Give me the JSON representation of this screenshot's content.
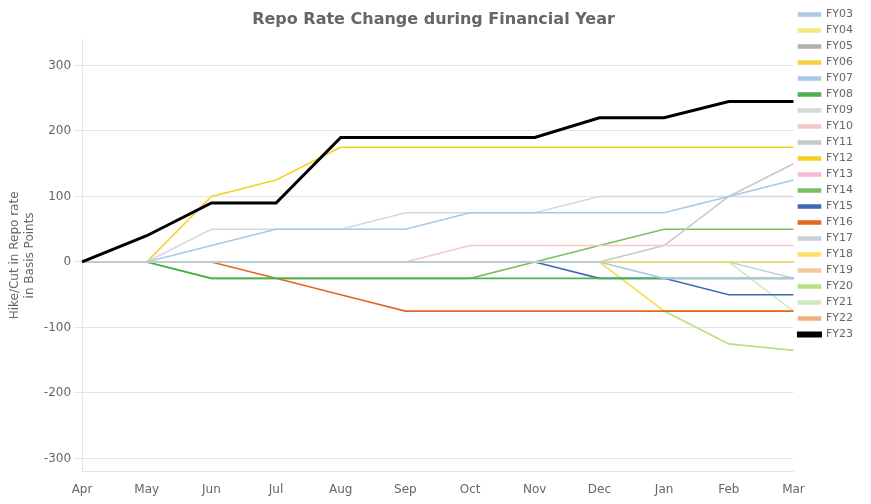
{
  "chart_data": {
    "type": "line",
    "title": "Repo Rate Change during Financial Year",
    "y_label": "Hike/Cut in Repo rate\nin Basis Points",
    "categories": [
      "Apr",
      "May",
      "Jun",
      "Jul",
      "Aug",
      "Sep",
      "Oct",
      "Nov",
      "Dec",
      "Jan",
      "Feb",
      "Mar"
    ],
    "ylim": [
      -320,
      340
    ],
    "yticks": [
      -300,
      -200,
      -100,
      0,
      100,
      200,
      300
    ],
    "grid": true,
    "legend": "right",
    "series": [
      {
        "name": "FY03",
        "color": "#aec6e8",
        "values": [
          0,
          0,
          0,
          0,
          0,
          0,
          0,
          0,
          0,
          -25,
          -25,
          -25
        ]
      },
      {
        "name": "FY04",
        "color": "#f5e97a",
        "values": [
          0,
          0,
          0,
          0,
          0,
          0,
          0,
          0,
          0,
          0,
          0,
          0
        ]
      },
      {
        "name": "FY05",
        "color": "#b0b0b0",
        "values": [
          0,
          0,
          0,
          0,
          0,
          0,
          0,
          0,
          0,
          0,
          0,
          0
        ]
      },
      {
        "name": "FY06",
        "color": "#f5d040",
        "values": [
          0,
          0,
          0,
          0,
          0,
          0,
          0,
          0,
          0,
          0,
          0,
          0
        ]
      },
      {
        "name": "FY07",
        "color": "#a8c8e8",
        "values": [
          0,
          0,
          25,
          50,
          50,
          50,
          75,
          75,
          75,
          75,
          100,
          125
        ]
      },
      {
        "name": "FY08",
        "color": "#4caf50",
        "values": [
          0,
          0,
          -25,
          -25,
          -25,
          -25,
          -25,
          -25,
          -25,
          -25,
          -25,
          -25
        ]
      },
      {
        "name": "FY09",
        "color": "#d8d8d8",
        "values": [
          0,
          0,
          50,
          50,
          50,
          75,
          75,
          75,
          100,
          100,
          100,
          100
        ]
      },
      {
        "name": "FY10",
        "color": "#f5c8c8",
        "values": [
          0,
          0,
          0,
          0,
          0,
          0,
          25,
          25,
          25,
          25,
          25,
          25
        ]
      },
      {
        "name": "FY11",
        "color": "#c8c8c8",
        "values": [
          0,
          0,
          0,
          0,
          0,
          0,
          0,
          0,
          0,
          25,
          100,
          150
        ]
      },
      {
        "name": "FY12",
        "color": "#f5d020",
        "values": [
          0,
          0,
          100,
          125,
          175,
          175,
          175,
          175,
          175,
          175,
          175,
          175
        ]
      },
      {
        "name": "FY13",
        "color": "#f9b8d4",
        "values": [
          0,
          0,
          0,
          0,
          0,
          0,
          0,
          0,
          0,
          0,
          0,
          0
        ]
      },
      {
        "name": "FY14",
        "color": "#7cbf5e",
        "values": [
          0,
          0,
          -25,
          -25,
          -25,
          -25,
          -25,
          0,
          25,
          50,
          50,
          50
        ]
      },
      {
        "name": "FY15",
        "color": "#3b6bb5",
        "values": [
          0,
          0,
          0,
          0,
          0,
          0,
          0,
          0,
          -25,
          -25,
          -50,
          -50
        ]
      },
      {
        "name": "FY16",
        "color": "#e06820",
        "values": [
          0,
          0,
          0,
          -25,
          -50,
          -75,
          -75,
          -75,
          -75,
          -75,
          -75,
          -75
        ]
      },
      {
        "name": "FY17",
        "color": "#c8d0d8",
        "values": [
          0,
          0,
          0,
          0,
          0,
          0,
          0,
          0,
          0,
          0,
          0,
          -25
        ]
      },
      {
        "name": "FY18",
        "color": "#ffe060",
        "values": [
          0,
          0,
          0,
          0,
          0,
          0,
          0,
          0,
          0,
          -75,
          -75,
          -75
        ]
      },
      {
        "name": "FY19",
        "color": "#f5c8a0",
        "values": [
          0,
          0,
          0,
          0,
          0,
          0,
          0,
          0,
          0,
          0,
          0,
          0
        ]
      },
      {
        "name": "FY20",
        "color": "#b8e080",
        "values": [
          0,
          0,
          0,
          0,
          0,
          0,
          0,
          0,
          0,
          -75,
          -125,
          -135
        ]
      },
      {
        "name": "FY21",
        "color": "#d0e8c0",
        "values": [
          0,
          0,
          0,
          0,
          0,
          0,
          0,
          0,
          0,
          0,
          0,
          -75
        ]
      },
      {
        "name": "FY22",
        "color": "#f0b080",
        "values": [
          0,
          0,
          0,
          0,
          0,
          0,
          0,
          0,
          0,
          0,
          0,
          0
        ]
      },
      {
        "name": "FY23",
        "color": "#000000",
        "values": [
          0,
          40,
          90,
          90,
          190,
          190,
          190,
          190,
          220,
          220,
          245,
          245
        ]
      }
    ]
  }
}
